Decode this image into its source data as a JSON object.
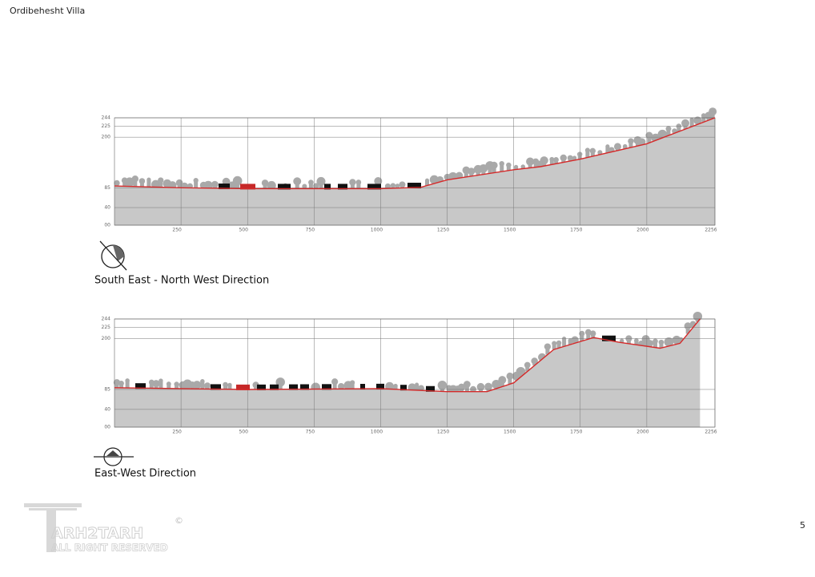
{
  "header": {
    "title": "Ordibehesht Villa"
  },
  "page_number": "5",
  "logo": {
    "brand": "ARH2TARH",
    "rights": "ALL RIGHT RESERVED",
    "copyright": "©"
  },
  "chart_data": [
    {
      "type": "area",
      "title": "South East - North West Direction",
      "x": [
        0,
        250,
        500,
        1000,
        1150,
        1250,
        1500,
        1600,
        1750,
        2000,
        2256
      ],
      "values": [
        89,
        85,
        83,
        83,
        86,
        103,
        126,
        133,
        150,
        185,
        244
      ],
      "color": "#d42a2a",
      "fill": "#c8c8c8",
      "grid": true,
      "xlim": [
        0,
        2256
      ],
      "xticks": [
        250,
        500,
        750,
        1000,
        1250,
        1500,
        1750,
        2000,
        2256
      ],
      "ylim": [
        0,
        244
      ],
      "yticks": [
        {
          "value": 0,
          "label": "00"
        },
        40,
        85,
        200,
        225,
        244
      ]
    },
    {
      "type": "area",
      "title": "East-West Direction",
      "x": [
        0,
        500,
        1000,
        1250,
        1400,
        1500,
        1650,
        1800,
        1900,
        2050,
        2125,
        2200
      ],
      "values": [
        89,
        85,
        87,
        80,
        80,
        100,
        175,
        202,
        191,
        178,
        189,
        244
      ],
      "color": "#d42a2a",
      "fill": "#c8c8c8",
      "grid": true,
      "xlim": [
        0,
        2256
      ],
      "xticks": [
        250,
        500,
        750,
        1000,
        1250,
        1500,
        1750,
        2000,
        2256
      ],
      "ylim": [
        0,
        244
      ],
      "yticks": [
        {
          "value": 0,
          "label": "00"
        },
        40,
        85,
        200,
        225,
        244
      ]
    }
  ]
}
